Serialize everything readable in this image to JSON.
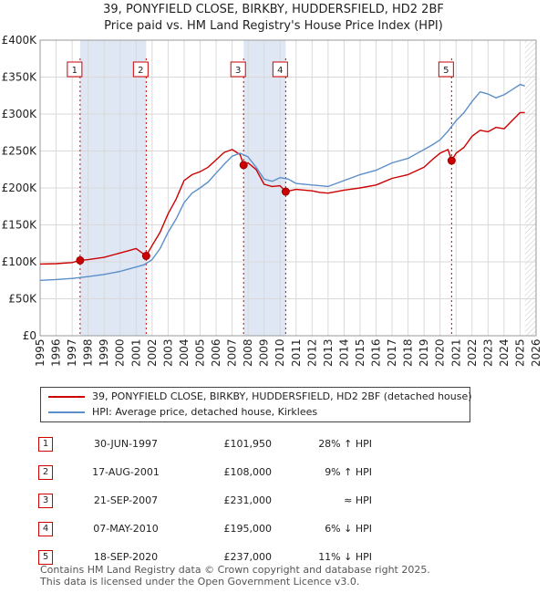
{
  "title_line1": "39, PONYFIELD CLOSE, BIRKBY, HUDDERSFIELD, HD2 2BF",
  "title_line2": "Price paid vs. HM Land Registry's House Price Index (HPI)",
  "colors": {
    "red": "#cc0000",
    "blue": "#5b8fc9",
    "band": "#dfe7f5",
    "grid": "#d9d9d9"
  },
  "chart_data": {
    "type": "line",
    "x_range": [
      1995,
      2026
    ],
    "ylim": [
      0,
      400000
    ],
    "y_ticks": [
      {
        "value": 0,
        "label": "£0"
      },
      {
        "value": 50000,
        "label": "£50K"
      },
      {
        "value": 100000,
        "label": "£100K"
      },
      {
        "value": 150000,
        "label": "£150K"
      },
      {
        "value": 200000,
        "label": "£200K"
      },
      {
        "value": 250000,
        "label": "£250K"
      },
      {
        "value": 300000,
        "label": "£300K"
      },
      {
        "value": 350000,
        "label": "£350K"
      },
      {
        "value": 400000,
        "label": "£400K"
      }
    ],
    "x_ticks": [
      "1995",
      "1996",
      "1997",
      "1998",
      "1999",
      "2000",
      "2001",
      "2002",
      "2003",
      "2004",
      "2005",
      "2006",
      "2007",
      "2008",
      "2009",
      "2010",
      "2011",
      "2012",
      "2013",
      "2014",
      "2015",
      "2016",
      "2017",
      "2018",
      "2019",
      "2020",
      "2021",
      "2022",
      "2023",
      "2024",
      "2025",
      "2026"
    ],
    "shaded_bands": [
      [
        1997.5,
        2001.63
      ],
      [
        2007.72,
        2010.35
      ]
    ],
    "hatched_from": 2025.3,
    "series": [
      {
        "name": "39, PONYFIELD CLOSE, BIRKBY, HUDDERSFIELD, HD2 2BF (detached house)",
        "color": "#cc0000",
        "x": [
          1995,
          1996,
          1997,
          1997.5,
          1998,
          1999,
          2000,
          2000.5,
          2001,
          2001.63,
          2002,
          2002.5,
          2003,
          2003.5,
          2004,
          2004.5,
          2005,
          2005.5,
          2006,
          2006.5,
          2007,
          2007.5,
          2007.72,
          2008,
          2008.5,
          2009,
          2009.5,
          2010,
          2010.35,
          2011,
          2012,
          2012.5,
          2013,
          2014,
          2015,
          2016,
          2017,
          2018,
          2019,
          2019.5,
          2020,
          2020.5,
          2020.72,
          2021,
          2021.5,
          2022,
          2022.5,
          2023,
          2023.5,
          2024,
          2024.5,
          2025,
          2025.3
        ],
        "values": [
          97000,
          97500,
          99000,
          101950,
          103000,
          106000,
          112000,
          115000,
          118000,
          108000,
          122000,
          140000,
          165000,
          185000,
          210000,
          218000,
          222000,
          228000,
          238000,
          248000,
          252000,
          245000,
          231000,
          234000,
          225000,
          205000,
          202000,
          203000,
          195000,
          198000,
          196000,
          194000,
          193000,
          197000,
          200000,
          204000,
          213000,
          218000,
          228000,
          238000,
          247000,
          252000,
          237000,
          247000,
          255000,
          270000,
          278000,
          276000,
          282000,
          280000,
          291000,
          302000,
          302000
        ]
      },
      {
        "name": "HPI: Average price, detached house, Kirklees",
        "color": "#5b8fc9",
        "x": [
          1995,
          1996,
          1997,
          1998,
          1999,
          2000,
          2000.5,
          2001,
          2001.5,
          2002,
          2002.5,
          2003,
          2003.5,
          2004,
          2004.5,
          2005,
          2005.5,
          2006,
          2006.5,
          2007,
          2007.5,
          2008,
          2008.5,
          2009,
          2009.5,
          2010,
          2010.5,
          2011,
          2012,
          2012.5,
          2013,
          2014,
          2015,
          2016,
          2017,
          2018,
          2018.5,
          2019,
          2019.5,
          2020,
          2020.5,
          2021,
          2021.5,
          2022,
          2022.5,
          2023,
          2023.5,
          2024,
          2024.5,
          2025,
          2025.3
        ],
        "values": [
          75000,
          76000,
          77500,
          80000,
          83000,
          87000,
          90000,
          93000,
          96000,
          103000,
          118000,
          140000,
          158000,
          180000,
          193000,
          200000,
          208000,
          220000,
          232000,
          243000,
          247000,
          242000,
          228000,
          212000,
          209000,
          214000,
          212000,
          206000,
          204000,
          203000,
          202000,
          210000,
          218000,
          224000,
          234000,
          240000,
          246000,
          252000,
          258000,
          265000,
          277000,
          291000,
          302000,
          317000,
          330000,
          327000,
          322000,
          326000,
          333000,
          340000,
          338000
        ]
      }
    ],
    "sale_points": [
      {
        "x": 1997.5,
        "value": 101950,
        "label": "1"
      },
      {
        "x": 2001.63,
        "value": 108000,
        "label": "2"
      },
      {
        "x": 2007.72,
        "value": 231000,
        "label": "3"
      },
      {
        "x": 2010.35,
        "value": 195000,
        "label": "4"
      },
      {
        "x": 2020.72,
        "value": 237000,
        "label": "5"
      }
    ]
  },
  "legend": {
    "red_label": "39, PONYFIELD CLOSE, BIRKBY, HUDDERSFIELD, HD2 2BF (detached house)",
    "blue_label": "HPI: Average price, detached house, Kirklees"
  },
  "sales": [
    {
      "num": "1",
      "date": "30-JUN-1997",
      "price": "£101,950",
      "hpi": "28% ↑ HPI"
    },
    {
      "num": "2",
      "date": "17-AUG-2001",
      "price": "£108,000",
      "hpi": "9% ↑ HPI"
    },
    {
      "num": "3",
      "date": "21-SEP-2007",
      "price": "£231,000",
      "hpi": "≈ HPI"
    },
    {
      "num": "4",
      "date": "07-MAY-2010",
      "price": "£195,000",
      "hpi": "6% ↓ HPI"
    },
    {
      "num": "5",
      "date": "18-SEP-2020",
      "price": "£237,000",
      "hpi": "11% ↓ HPI"
    }
  ],
  "footer_line1": "Contains HM Land Registry data © Crown copyright and database right 2025.",
  "footer_line2": "This data is licensed under the Open Government Licence v3.0."
}
